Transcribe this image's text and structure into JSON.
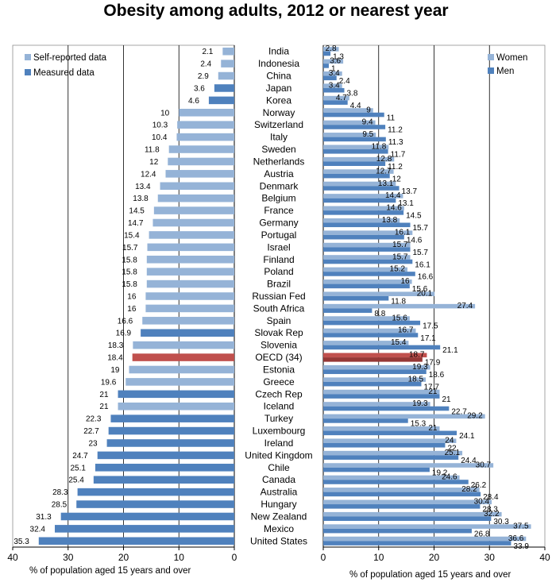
{
  "title": "Obesity among adults, 2012 or nearest year",
  "chart_data": [
    {
      "type": "bar",
      "orientation": "horizontal",
      "direction": "right-to-left",
      "xlabel": "% of population aged 15 years and over",
      "xlim": [
        0,
        40
      ],
      "xticks": [
        "40",
        "30",
        "20",
        "10",
        "0"
      ],
      "grid": true,
      "legend_position": "top-left",
      "legend": [
        {
          "name": "Self-reported data",
          "color": "#95b3d7"
        },
        {
          "name": "Measured data",
          "color": "#4f81bd"
        }
      ],
      "highlight": {
        "category": "OECD (34)",
        "color": "#c0504d"
      },
      "categories": [
        "India",
        "Indonesia",
        "China",
        "Japan",
        "Korea",
        "Norway",
        "Switzerland",
        "Italy",
        "Sweden",
        "Netherlands",
        "Austria",
        "Denmark",
        "Belgium",
        "France",
        "Germany",
        "Portugal",
        "Israel",
        "Finland",
        "Poland",
        "Brazil",
        "Russian Fed",
        "South Africa",
        "Spain",
        "Slovak Rep",
        "Slovenia",
        "OECD (34)",
        "Estonia",
        "Greece",
        "Czech Rep",
        "Iceland",
        "Turkey",
        "Luxembourg",
        "Ireland",
        "United Kingdom",
        "Chile",
        "Canada",
        "Australia",
        "Hungary",
        "New Zealand",
        "Mexico",
        "United States"
      ],
      "values": [
        2.1,
        2.4,
        2.9,
        3.6,
        4.6,
        10,
        10.3,
        10.4,
        11.8,
        12,
        12.4,
        13.4,
        13.8,
        14.5,
        14.7,
        15.4,
        15.7,
        15.8,
        15.8,
        15.8,
        16,
        16,
        16.6,
        16.9,
        18.3,
        18.4,
        19,
        19.6,
        21,
        21,
        22.3,
        22.7,
        23,
        24.7,
        25.1,
        25.4,
        28.3,
        28.5,
        31.3,
        32.4,
        35.3
      ],
      "labels": [
        "2.1",
        "2.4",
        "2.9",
        "3.6",
        "4.6",
        "10",
        "10.3",
        "10.4",
        "11.8",
        "12",
        "12.4",
        "13.4",
        "13.8",
        "14.5",
        "14.7",
        "15.4",
        "15.7",
        "15.8",
        "15.8",
        "15.8",
        "16",
        "16",
        "16.6",
        "16.9",
        "18.3",
        "18.4",
        "19",
        "19.6",
        "21",
        "21",
        "22.3",
        "22.7",
        "23",
        "24.7",
        "25.1",
        "25.4",
        "28.3",
        "28.5",
        "31.3",
        "32.4",
        "35.3"
      ],
      "data_type": [
        "S",
        "S",
        "S",
        "M",
        "M",
        "S",
        "S",
        "S",
        "S",
        "S",
        "S",
        "S",
        "S",
        "S",
        "S",
        "S",
        "S",
        "S",
        "S",
        "S",
        "S",
        "S",
        "S",
        "M",
        "S",
        "O",
        "S",
        "S",
        "M",
        "S",
        "M",
        "M",
        "M",
        "M",
        "M",
        "M",
        "M",
        "M",
        "M",
        "M",
        "M"
      ]
    },
    {
      "type": "bar",
      "orientation": "horizontal",
      "xlabel": "% of population aged 15 years and over",
      "xlim": [
        0,
        40
      ],
      "xticks": [
        "0",
        "10",
        "20",
        "30",
        "40"
      ],
      "grid": true,
      "legend_position": "top-right",
      "categories": [
        "India",
        "Indonesia",
        "China",
        "Japan",
        "Korea",
        "Norway",
        "Switzerland",
        "Italy",
        "Sweden",
        "Netherlands",
        "Austria",
        "Denmark",
        "Belgium",
        "France",
        "Germany",
        "Portugal",
        "Israel",
        "Finland",
        "Poland",
        "Brazil",
        "Russian Fed",
        "South Africa",
        "Spain",
        "Slovak Rep",
        "Slovenia",
        "OECD (34)",
        "Estonia",
        "Greece",
        "Czech Rep",
        "Iceland",
        "Turkey",
        "Luxembourg",
        "Ireland",
        "United Kingdom",
        "Chile",
        "Canada",
        "Australia",
        "Hungary",
        "New Zealand",
        "Mexico",
        "United States"
      ],
      "series": [
        {
          "name": "Women",
          "color": "#95b3d7",
          "values": [
            2.8,
            3.6,
            3.4,
            3.4,
            4.7,
            9,
            9.4,
            9.5,
            11.8,
            12.8,
            12.7,
            13.1,
            14.4,
            14.6,
            13.8,
            16.1,
            15.7,
            15.7,
            15.2,
            16,
            20.1,
            27.4,
            15.6,
            16.7,
            15.4,
            18.7,
            19.3,
            18.5,
            21,
            19.3,
            29.2,
            21,
            24,
            25.1,
            30.7,
            24.6,
            28.2,
            30.4,
            32.2,
            37.5,
            36.6
          ],
          "labels": [
            "2.8",
            "3.6",
            "3.4",
            "3.4",
            "4.7",
            "9",
            "9.4",
            "9.5",
            "11.8",
            "12.8",
            "12.7",
            "13.1",
            "14.4",
            "14.6",
            "13.8",
            "16.1",
            "15.7",
            "15.7",
            "15.2",
            "16",
            "20.1",
            "27.4",
            "15.6",
            "16.7",
            "15.4",
            "18.7",
            "19.3",
            "18.5",
            "21",
            "19.3",
            "29.2",
            "21",
            "24",
            "25.1",
            "30.7",
            "24.6",
            "28.2",
            "30.4",
            "32.2",
            "37.5",
            "36.6"
          ]
        },
        {
          "name": "Men",
          "color": "#4f81bd",
          "values": [
            1.3,
            1,
            2.4,
            3.8,
            4.4,
            11,
            11.2,
            11.3,
            11.7,
            11.2,
            12,
            13.7,
            13.1,
            14.5,
            15.7,
            14.6,
            15.7,
            16.1,
            16.6,
            15.6,
            11.8,
            8.8,
            17.5,
            17.1,
            21.1,
            17.9,
            18.6,
            17.7,
            21,
            22.7,
            15.3,
            24.1,
            22,
            24.4,
            19.2,
            26.2,
            28.4,
            28.3,
            30.3,
            26.8,
            33.9
          ],
          "labels": [
            "1.3",
            "1",
            "2.4",
            "3.8",
            "4.4",
            "11",
            "11.2",
            "11.3",
            "11.7",
            "11.2",
            "12",
            "13.7",
            "13.1",
            "14.5",
            "15.7",
            "14.6",
            "15.7",
            "16.1",
            "16.6",
            "15.6",
            "11.8",
            "8.8",
            "17.5",
            "17.1",
            "21.1",
            "17.9",
            "18.6",
            "17.7",
            "21",
            "22.7",
            "15.3",
            "24.1",
            "22",
            "24.4",
            "19.2",
            "26.2",
            "28.4",
            "28.3",
            "30.3",
            "26.8",
            "33.9"
          ]
        }
      ],
      "highlight": {
        "category": "OECD (34)",
        "color": "#c0504d"
      }
    }
  ]
}
